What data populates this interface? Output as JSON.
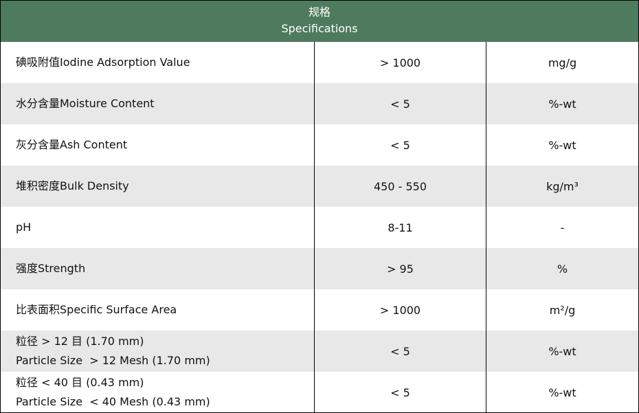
{
  "header": {
    "title_cn": "规格",
    "title_en": "Specifications"
  },
  "colors": {
    "header_bg": "#4e7b5e",
    "alt_row_bg": "#e8e8e8"
  },
  "rows": [
    {
      "lines": [
        "碘吸附值Iodine Adsorption Value"
      ],
      "value": "> 1000",
      "unit": "mg/g"
    },
    {
      "lines": [
        "水分含量Moisture Content"
      ],
      "value": "< 5",
      "unit": "%-wt"
    },
    {
      "lines": [
        "灰分含量Ash Content"
      ],
      "value": "< 5",
      "unit": "%-wt"
    },
    {
      "lines": [
        "堆积密度Bulk Density"
      ],
      "value": "450 - 550",
      "unit": "kg/m³"
    },
    {
      "lines": [
        "pH"
      ],
      "value": "8-11",
      "unit": "-"
    },
    {
      "lines": [
        "强度Strength"
      ],
      "value": "> 95",
      "unit": "%"
    },
    {
      "lines": [
        "比表面积Specific Surface Area"
      ],
      "value": "> 1000",
      "unit": "m²/g"
    },
    {
      "lines": [
        "粒径 > 12 目 (1.70 mm)",
        "Particle Size  > 12 Mesh (1.70 mm)"
      ],
      "value": "< 5",
      "unit": "%-wt"
    },
    {
      "lines": [
        "粒径 < 40 目 (0.43 mm)",
        "Particle Size  < 40 Mesh (0.43 mm)"
      ],
      "value": "< 5",
      "unit": "%-wt"
    }
  ]
}
